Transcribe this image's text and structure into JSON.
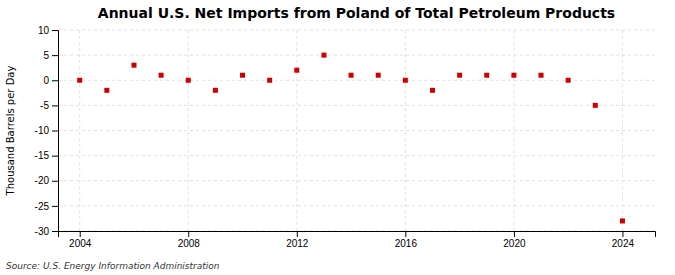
{
  "chart_data": {
    "type": "scatter",
    "title": "Annual U.S. Net Imports from Poland of Total Petroleum Products",
    "ylabel": "Thousand Barrels per Day",
    "annotations": [
      "Source: U.S. Energy Information Administration"
    ],
    "x": [
      2004,
      2005,
      2006,
      2007,
      2008,
      2009,
      2010,
      2011,
      2012,
      2013,
      2014,
      2015,
      2016,
      2017,
      2018,
      2019,
      2020,
      2021,
      2022,
      2023,
      2024
    ],
    "values": [
      0,
      -2,
      3,
      1,
      0,
      -2,
      1,
      0,
      2,
      5,
      1,
      1,
      0,
      -2,
      1,
      1,
      1,
      1,
      0,
      -5,
      -28
    ],
    "color": "#cc0000",
    "marker": "square",
    "xlim": [
      2003.2,
      2025.2
    ],
    "ylim": [
      -30,
      10
    ],
    "xticks": [
      2004,
      2008,
      2012,
      2016,
      2020,
      2024
    ],
    "yticks": [
      10,
      5,
      0,
      -5,
      -10,
      -15,
      -20,
      -25,
      -30
    ],
    "grid": true
  }
}
